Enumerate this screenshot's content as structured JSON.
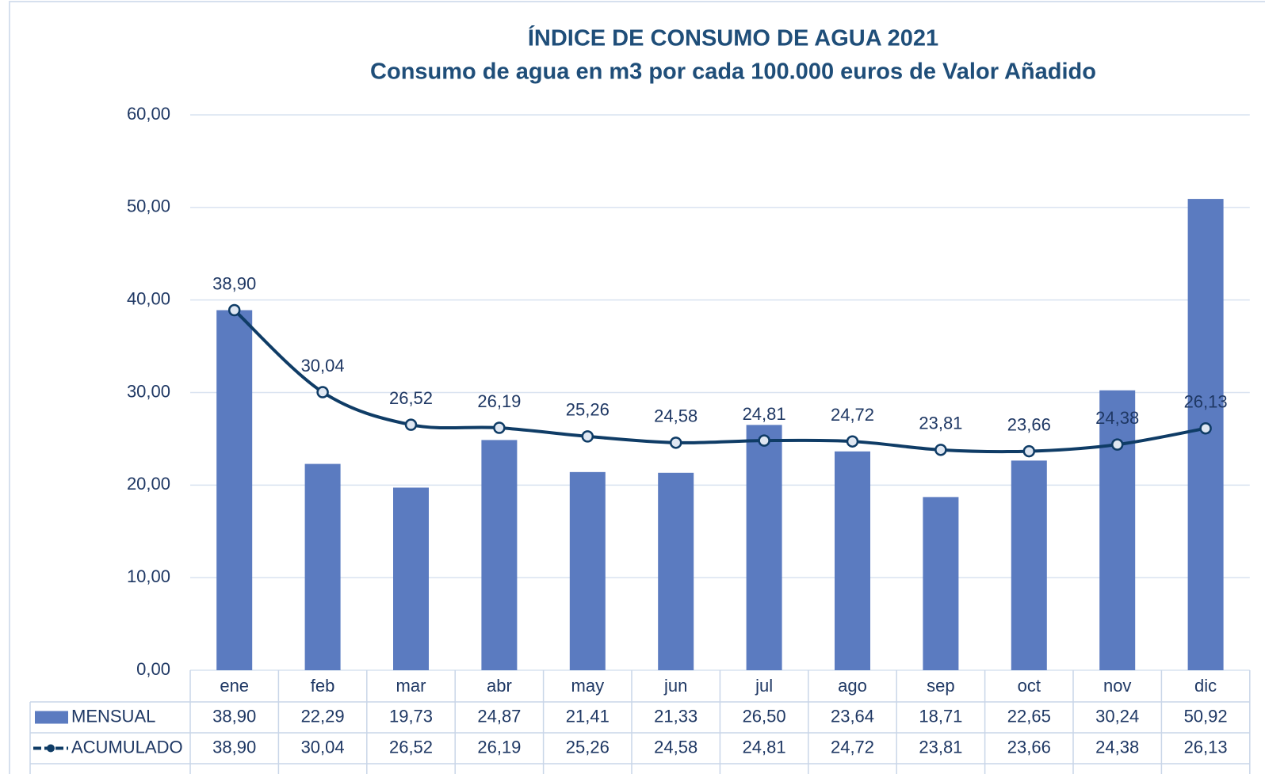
{
  "chart_data": {
    "type": "bar_line_table",
    "title": "ÍNDICE DE CONSUMO DE AGUA 2021",
    "subtitle": "Consumo de agua en m3 por cada 100.000 euros de Valor Añadido",
    "categories": [
      "ene",
      "feb",
      "mar",
      "abr",
      "may",
      "jun",
      "jul",
      "ago",
      "sep",
      "oct",
      "nov",
      "dic"
    ],
    "series": [
      {
        "name": "MENSUAL",
        "type": "bar",
        "color": "#5b7bc0",
        "values": [
          38.9,
          22.29,
          19.73,
          24.87,
          21.41,
          21.33,
          26.5,
          23.64,
          18.71,
          22.65,
          30.24,
          50.92
        ],
        "value_labels": [
          "38,90",
          "22,29",
          "19,73",
          "24,87",
          "21,41",
          "21,33",
          "26,50",
          "23,64",
          "18,71",
          "22,65",
          "30,24",
          "50,92"
        ]
      },
      {
        "name": "ACUMULADO",
        "type": "line",
        "color": "#0f3c66",
        "values": [
          38.9,
          30.04,
          26.52,
          26.19,
          25.26,
          24.58,
          24.81,
          24.72,
          23.81,
          23.66,
          24.38,
          26.13
        ],
        "value_labels": [
          "38,90",
          "30,04",
          "26,52",
          "26,19",
          "25,26",
          "24,58",
          "24,81",
          "24,72",
          "23,81",
          "23,66",
          "24,38",
          "26,13"
        ]
      }
    ],
    "ylim": [
      0,
      60
    ],
    "yticks": [
      {
        "value": 0,
        "label": "0,00"
      },
      {
        "value": 10,
        "label": "10,00"
      },
      {
        "value": 20,
        "label": "20,00"
      },
      {
        "value": 30,
        "label": "30,00"
      },
      {
        "value": 40,
        "label": "40,00"
      },
      {
        "value": 50,
        "label": "50,00"
      },
      {
        "value": 60,
        "label": "60,00"
      }
    ],
    "grid": true
  }
}
